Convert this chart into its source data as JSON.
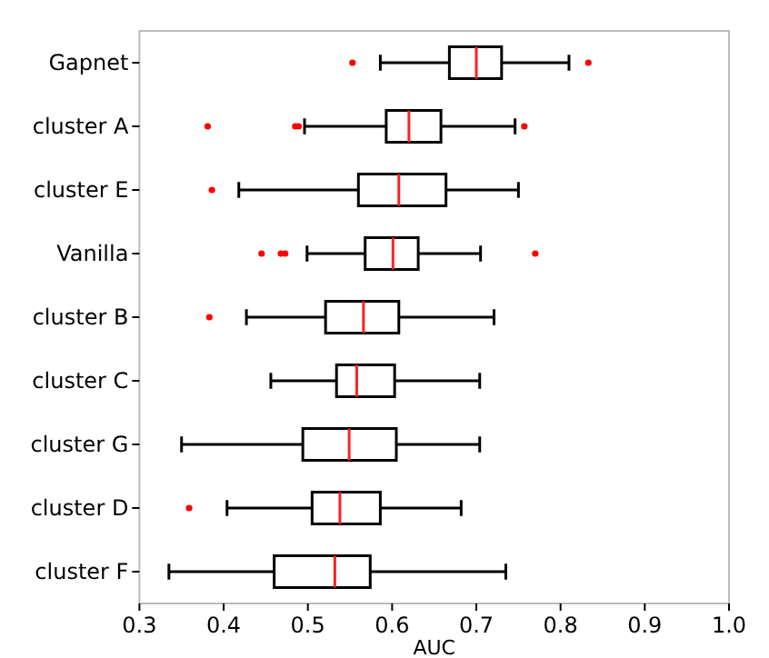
{
  "chart_data": {
    "type": "box",
    "orientation": "horizontal",
    "xlabel": "AUC",
    "categories": [
      "Gapnet",
      "cluster A",
      "cluster E",
      "Vanilla",
      "cluster B",
      "cluster C",
      "cluster G",
      "cluster D",
      "cluster F"
    ],
    "color": "#000000",
    "xlim": [
      0.3,
      1.0
    ],
    "xticks": [
      0.3,
      0.4,
      0.5,
      0.6,
      0.7,
      0.8,
      0.9,
      {
        "value": 1,
        "label": "1.0"
      }
    ],
    "boxes": [
      {
        "low": 0.586,
        "q1": 0.668,
        "median": 0.7,
        "q3": 0.73,
        "high": 0.81,
        "outliers": [
          0.553,
          0.833
        ]
      },
      {
        "low": 0.496,
        "q1": 0.593,
        "median": 0.62,
        "q3": 0.658,
        "high": 0.746,
        "outliers": [
          0.381,
          0.485,
          0.489,
          0.757
        ]
      },
      {
        "low": 0.418,
        "q1": 0.56,
        "median": 0.608,
        "q3": 0.664,
        "high": 0.75,
        "outliers": [
          0.386
        ]
      },
      {
        "low": 0.499,
        "q1": 0.568,
        "median": 0.601,
        "q3": 0.631,
        "high": 0.705,
        "outliers": [
          0.445,
          0.468,
          0.473,
          0.77
        ]
      },
      {
        "low": 0.427,
        "q1": 0.521,
        "median": 0.566,
        "q3": 0.608,
        "high": 0.721,
        "outliers": [
          0.383
        ]
      },
      {
        "low": 0.456,
        "q1": 0.534,
        "median": 0.558,
        "q3": 0.603,
        "high": 0.704
      },
      {
        "low": 0.35,
        "q1": 0.494,
        "median": 0.549,
        "q3": 0.605,
        "high": 0.704
      },
      {
        "low": 0.404,
        "q1": 0.505,
        "median": 0.538,
        "q3": 0.586,
        "high": 0.682,
        "outliers": [
          0.359
        ]
      },
      {
        "low": 0.335,
        "q1": 0.46,
        "median": 0.532,
        "q3": 0.574,
        "high": 0.735
      }
    ]
  }
}
